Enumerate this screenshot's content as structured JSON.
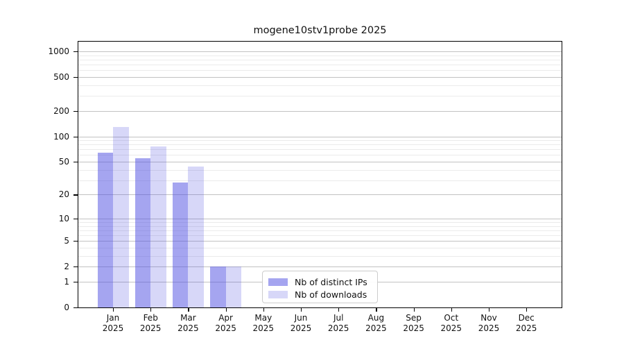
{
  "chart_data": {
    "type": "bar",
    "title": "mogene10stv1probe 2025",
    "categories": [
      "Jan",
      "Feb",
      "Mar",
      "Apr",
      "May",
      "Jun",
      "Jul",
      "Aug",
      "Sep",
      "Oct",
      "Nov",
      "Dec"
    ],
    "x_year": "2025",
    "series": [
      {
        "name": "Nb of distinct IPs",
        "color_hex": "#4b4be1",
        "alpha": 0.5,
        "values": [
          64,
          55,
          28,
          2,
          0,
          0,
          0,
          0,
          0,
          0,
          0,
          0
        ]
      },
      {
        "name": "Nb of downloads",
        "color_hex": "#4b4be1",
        "alpha": 0.22,
        "values": [
          130,
          76,
          44,
          2,
          0,
          0,
          0,
          0,
          0,
          0,
          0,
          0
        ]
      }
    ],
    "yscale": "log1p",
    "ylim": [
      0,
      1300
    ],
    "yticks": [
      0,
      1,
      2,
      5,
      10,
      20,
      50,
      100,
      200,
      500,
      1000
    ],
    "yticks_minor": [
      3,
      4,
      6,
      7,
      8,
      9,
      30,
      40,
      60,
      70,
      80,
      90,
      300,
      400,
      600,
      700,
      800,
      900
    ],
    "grid": true,
    "legend_position": "lower center"
  },
  "colors": {
    "grid_major": "#c2c2c2",
    "grid_minor": "#ebebeb",
    "axis": "#000000",
    "text": "#111111",
    "background": "#ffffff"
  }
}
